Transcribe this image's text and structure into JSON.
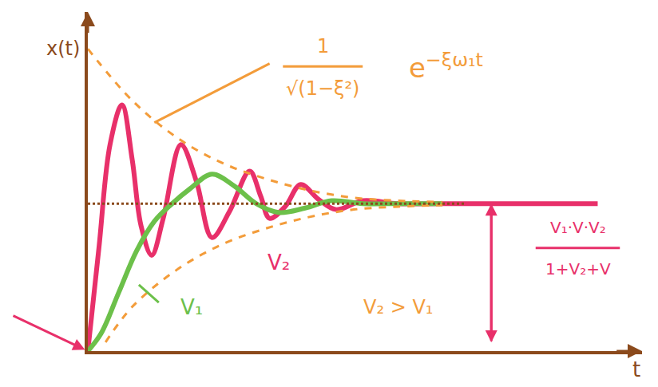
{
  "chart_data": {
    "type": "line",
    "x_label": "t",
    "y_label": "x(t)",
    "xlim": [
      0,
      12.5
    ],
    "ylim": [
      0,
      2.3
    ],
    "tick_labels": false,
    "grid": false,
    "series": [
      {
        "name": "V₂",
        "color": "#e8306a",
        "line_style": "solid",
        "x": [
          0,
          0.25,
          0.5,
          0.77,
          1.0,
          1.2,
          1.44,
          1.7,
          2.1,
          2.45,
          2.8,
          3.2,
          3.65,
          3.9,
          4.1,
          4.45,
          4.8,
          5.2,
          5.6,
          6.2,
          7,
          8,
          9,
          10,
          11.5
        ],
        "values": [
          0,
          0.7,
          1.4,
          1.67,
          1.3,
          0.85,
          0.65,
          0.9,
          1.4,
          1.15,
          0.77,
          0.95,
          1.22,
          1.05,
          0.9,
          0.98,
          1.13,
          1.03,
          0.96,
          1.02,
          1.0,
          1.0,
          1.0,
          1.0,
          1.0
        ]
      },
      {
        "name": "V₁",
        "color": "#6cc04a",
        "line_style": "solid",
        "x": [
          0,
          0.3,
          0.7,
          1.1,
          1.5,
          1.9,
          2.3,
          2.8,
          3.3,
          3.8,
          4.3,
          4.9,
          5.5,
          6.2,
          7,
          8
        ],
        "values": [
          0,
          0.12,
          0.4,
          0.68,
          0.88,
          1.0,
          1.1,
          1.2,
          1.12,
          1.0,
          0.94,
          0.97,
          1.02,
          1.0,
          1.0,
          1.0
        ]
      },
      {
        "color": "#f39c3a",
        "line_style": "dashed",
        "x": [
          0,
          1,
          2,
          3,
          4,
          5,
          6,
          7,
          8
        ],
        "values": [
          2.05,
          1.7,
          1.45,
          1.28,
          1.17,
          1.09,
          1.04,
          1.02,
          1.01
        ]
      },
      {
        "color": "#f39c3a",
        "line_style": "dashed",
        "x": [
          0.4,
          1,
          2,
          3,
          4,
          5,
          6,
          7,
          8
        ],
        "values": [
          0.06,
          0.3,
          0.55,
          0.72,
          0.83,
          0.91,
          0.96,
          0.98,
          0.99
        ]
      }
    ],
    "annotations": {
      "envelope": {
        "numerator": "1",
        "denominator": "√(1−ξ²)",
        "base": "e",
        "exponent": "−ξω₁t"
      },
      "steady_state": {
        "value": 1,
        "numerator": "V₁·V·V₂",
        "denominator": "1+V₂+V"
      },
      "comparison": "V₂ > V₁"
    }
  }
}
